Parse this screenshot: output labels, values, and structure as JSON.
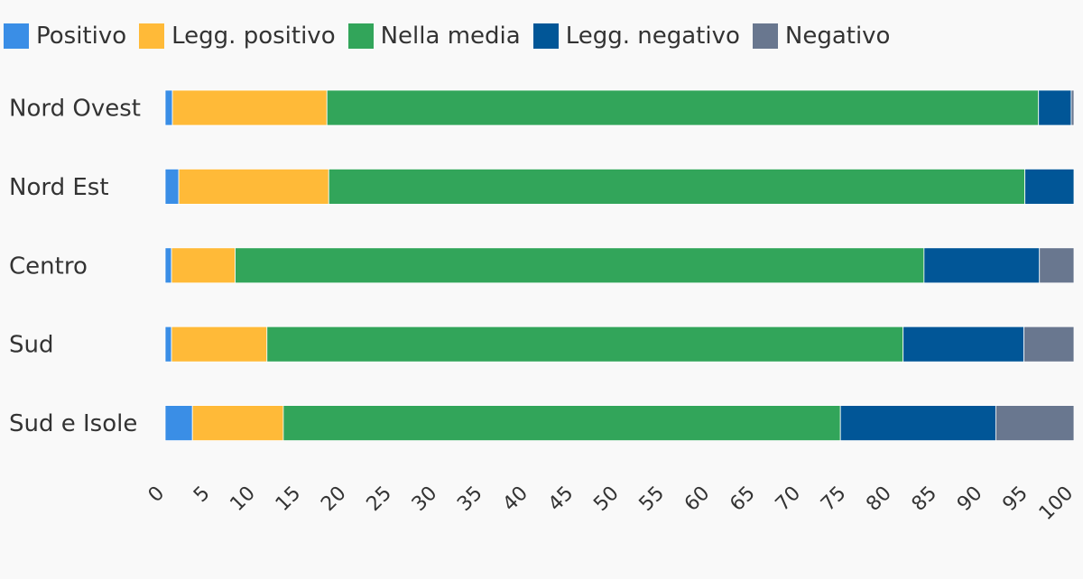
{
  "chart_data": {
    "type": "bar",
    "orientation": "horizontal",
    "stacked": true,
    "title": "",
    "xlabel": "",
    "ylabel": "",
    "xlim": [
      0,
      100
    ],
    "x_ticks": [
      "0",
      "5",
      "10",
      "15",
      "20",
      "25",
      "30",
      "35",
      "40",
      "45",
      "50",
      "55",
      "60",
      "65",
      "70",
      "75",
      "80",
      "85",
      "90",
      "95",
      "100"
    ],
    "legend_position": "top-left",
    "grid": false,
    "categories": [
      "Nord Ovest",
      "Nord Est",
      "Centro",
      "Sud",
      "Sud e Isole"
    ],
    "series": [
      {
        "name": "Positivo",
        "color": "#3a8ee6",
        "values": [
          0.8,
          1.5,
          0.7,
          0.7,
          3.0
        ]
      },
      {
        "name": "Legg. positivo",
        "color": "#ffba38",
        "values": [
          17.0,
          16.5,
          7.0,
          10.5,
          10.0
        ]
      },
      {
        "name": "Nella media",
        "color": "#32a55a",
        "values": [
          78.3,
          76.6,
          75.8,
          70.0,
          61.3
        ]
      },
      {
        "name": "Legg. negativo",
        "color": "#015697",
        "values": [
          3.6,
          5.4,
          12.7,
          13.3,
          17.1
        ]
      },
      {
        "name": "Negativo",
        "color": "#69778f",
        "values": [
          0.3,
          0.0,
          3.8,
          5.5,
          8.6
        ]
      }
    ]
  }
}
